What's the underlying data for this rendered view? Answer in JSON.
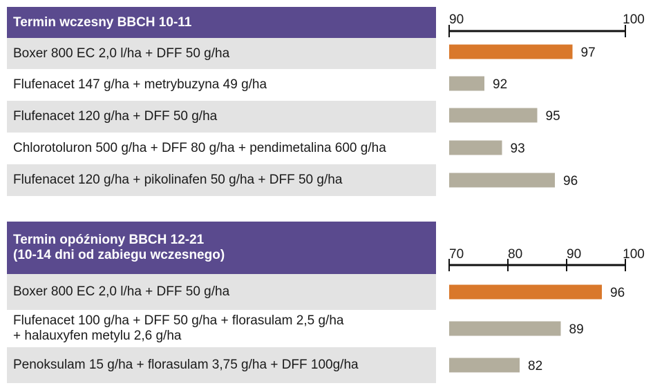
{
  "chart_data": [
    {
      "type": "bar",
      "orientation": "horizontal",
      "group_title": "Termin wczesny BBCH 10-11",
      "xlim": [
        90,
        100
      ],
      "ticks": [
        90,
        100
      ],
      "categories": [
        [
          "Boxer 800 EC 2,0 l/ha + DFF 50 g/ha"
        ],
        [
          "Flufenacet 147 g/ha + metrybuzyna 49 g/ha"
        ],
        [
          "Flufenacet 120 g/ha + DFF 50 g/ha"
        ],
        [
          "Chlorotoluron 500 g/ha + DFF 80 g/ha + pendimetalina 600 g/ha"
        ],
        [
          "Flufenacet 120 g/ha + pikolinafen 50 g/ha + DFF 50 g/ha"
        ]
      ],
      "values": [
        97,
        92,
        95,
        93,
        96
      ],
      "highlight": [
        true,
        false,
        false,
        false,
        false
      ]
    },
    {
      "type": "bar",
      "orientation": "horizontal",
      "group_title": [
        "Termin opóźniony BBCH 12-21",
        "(10-14 dni od zabiegu wczesnego)"
      ],
      "xlim": [
        70,
        100
      ],
      "ticks": [
        70,
        80,
        90,
        100
      ],
      "categories": [
        [
          "Boxer 800 EC 2,0 l/ha + DFF 50 g/ha"
        ],
        [
          "Flufenacet 100 g/ha + DFF 50 g/ha + florasulam 2,5 g/ha",
          "+ halauxyfen metylu 2,6 g/ha"
        ],
        [
          "Penoksulam 15 g/ha + florasulam 3,75 g/ha + DFF 100g/ha"
        ]
      ],
      "values": [
        96,
        89,
        82
      ],
      "highlight": [
        true,
        false,
        false
      ]
    }
  ],
  "colors": {
    "header_bg": "#5a4a8e",
    "highlight_bar": "#d9782b",
    "other_bar": "#b3ae9d",
    "row_shade": "#e3e3e3"
  }
}
